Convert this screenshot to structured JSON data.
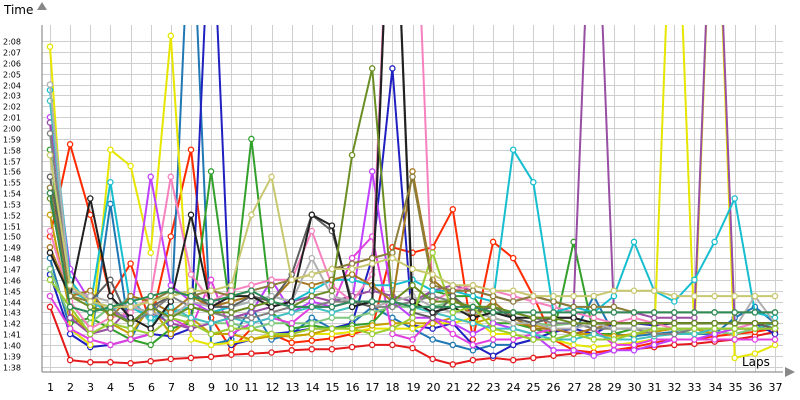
{
  "chart_data": {
    "type": "line",
    "ylabel": "Time",
    "xlabel": "Laps",
    "x_tick_labels": [
      "1",
      "2",
      "3",
      "4",
      "5",
      "6",
      "7",
      "8",
      "9",
      "10",
      "11",
      "12",
      "13",
      "14",
      "15",
      "16",
      "17",
      "18",
      "19",
      "20",
      "21",
      "22",
      "23",
      "24",
      "25",
      "26",
      "27",
      "28",
      "29",
      "30",
      "31",
      "32",
      "33",
      "34",
      "35",
      "36",
      "37"
    ],
    "y_tick_labels": [
      "1:38",
      "1:39",
      "1:40",
      "1:41",
      "1:42",
      "1:43",
      "1:44",
      "1:45",
      "1:46",
      "1:47",
      "1:48",
      "1:49",
      "1:50",
      "1:51",
      "1:52",
      "1:53",
      "1:54",
      "1:55",
      "1:56",
      "1:57",
      "1:58",
      "1:59",
      "2:00",
      "2:01",
      "2:02",
      "2:03",
      "2:04",
      "2:05",
      "2:06",
      "2:07",
      "2:08"
    ],
    "xlim": [
      1,
      37
    ],
    "ylim_seconds": [
      97.5,
      129.5
    ],
    "grid": true,
    "legend": "none",
    "series": [
      {
        "color": "#e41a1c",
        "values": [
          103.5,
          98.6,
          98.4,
          98.4,
          98.3,
          98.5,
          98.7,
          98.8,
          98.9,
          99.1,
          99.2,
          99.3,
          99.5,
          99.6,
          99.6,
          99.8,
          100.0,
          100.0,
          99.7,
          98.7,
          98.2,
          98.6,
          98.8,
          98.6,
          98.8,
          99.0,
          99.2,
          99.3,
          99.5,
          99.6,
          99.8,
          100.0,
          100.1,
          100.3,
          100.5,
          100.8,
          101.2
        ]
      },
      {
        "color": "#ff2a00",
        "values": [
          110.0,
          118.5,
          112.0,
          104.5,
          107.5,
          102.0,
          110.0,
          118.0,
          102.5,
          99.6,
          101.5,
          101.0,
          100.2,
          100.4,
          100.6,
          101.0,
          101.5,
          109.0,
          108.5,
          109.0,
          112.5,
          100.5,
          109.5,
          108.0,
          104.5,
          100.5,
          99.5,
          99.3,
          99.5,
          99.8,
          100.2,
          100.5,
          100.5,
          100.8,
          101.0,
          101.2,
          101.5
        ]
      },
      {
        "color": "#1f78b4",
        "values": [
          108.0,
          101.5,
          100.0,
          113.0,
          100.5,
          104.0,
          101.5,
          143.0,
          100.0,
          100.5,
          103.5,
          100.5,
          101.0,
          102.5,
          101.5,
          102.0,
          103.5,
          102.5,
          101.5,
          100.5,
          100.0,
          99.5,
          100.0,
          100.0,
          100.5,
          100.5,
          101.0,
          104.5,
          101.0,
          100.8,
          101.0,
          101.2,
          101.0,
          101.0,
          102.5,
          103.5,
          102.0
        ]
      },
      {
        "color": "#2020c0",
        "values": [
          106.5,
          101.0,
          99.8,
          100.0,
          100.5,
          101.0,
          100.8,
          101.5,
          143.0,
          100.0,
          100.5,
          101.0,
          101.2,
          101.5,
          101.5,
          102.0,
          108.0,
          125.5,
          101.8,
          101.5,
          102.0,
          100.0,
          99.0,
          100.0,
          100.5,
          101.2,
          101.5,
          101.0,
          102.0,
          102.0,
          101.8,
          102.0,
          102.0,
          102.0,
          102.0,
          102.0,
          101.0
        ]
      },
      {
        "color": "#33a02c",
        "values": [
          118.0,
          102.0,
          102.5,
          101.5,
          100.5,
          100.0,
          101.5,
          102.0,
          116.0,
          102.5,
          119.0,
          103.0,
          101.5,
          101.8,
          101.5,
          101.8,
          102.0,
          104.0,
          103.5,
          105.0,
          104.5,
          104.5,
          102.0,
          102.0,
          101.5,
          101.0,
          109.5,
          101.0,
          101.0,
          101.5,
          101.5,
          101.5,
          101.5,
          101.5,
          101.5,
          101.5,
          101.5
        ]
      },
      {
        "color": "#7fc97f",
        "values": [
          107.0,
          102.5,
          102.0,
          103.5,
          103.5,
          102.5,
          103.0,
          102.5,
          102.0,
          102.0,
          101.5,
          102.0,
          102.0,
          102.0,
          102.5,
          102.5,
          103.0,
          103.5,
          103.5,
          103.5,
          104.0,
          103.5,
          103.0,
          102.5,
          102.0,
          101.8,
          102.0,
          101.5,
          101.5,
          101.5,
          101.5,
          101.5,
          101.0,
          101.2,
          101.0,
          101.5,
          101.5
        ]
      },
      {
        "color": "#e6e600",
        "values": [
          127.5,
          101.5,
          100.0,
          118.0,
          116.5,
          108.5,
          128.5,
          100.5,
          100.0,
          100.2,
          100.5,
          101.0,
          100.8,
          101.0,
          101.0,
          101.2,
          101.5,
          101.5,
          101.5,
          102.0,
          102.0,
          102.5,
          101.0,
          101.0,
          100.5,
          100.5,
          100.0,
          99.8,
          100.0,
          100.2,
          100.5,
          150.0,
          101.0,
          150.0,
          98.8,
          99.2,
          100.0
        ]
      },
      {
        "color": "#c6a000",
        "values": [
          112.0,
          103.0,
          101.0,
          102.0,
          101.0,
          103.5,
          101.0,
          102.5,
          101.0,
          101.0,
          100.5,
          100.8,
          100.8,
          101.0,
          101.5,
          101.5,
          101.8,
          102.0,
          102.0,
          102.0,
          102.5,
          102.0,
          102.5,
          102.0,
          101.8,
          101.5,
          101.0,
          101.0,
          100.8,
          101.0,
          101.2,
          101.5,
          101.5,
          101.0,
          101.5,
          101.5,
          101.5
        ]
      },
      {
        "color": "#bf40ff",
        "values": [
          121.0,
          107.0,
          104.0,
          103.0,
          102.5,
          115.5,
          105.5,
          104.0,
          103.0,
          102.5,
          103.0,
          106.0,
          103.0,
          104.0,
          103.5,
          104.0,
          116.0,
          104.0,
          102.5,
          102.5,
          102.0,
          101.0,
          102.0,
          101.5,
          101.0,
          99.5,
          99.5,
          99.0,
          99.5,
          99.5,
          100.0,
          100.5,
          100.5,
          101.0,
          101.5,
          101.5,
          101.5
        ]
      },
      {
        "color": "#e040e0",
        "values": [
          104.5,
          101.5,
          100.5,
          100.0,
          100.5,
          101.0,
          102.5,
          101.5,
          106.0,
          101.0,
          102.0,
          102.5,
          102.0,
          103.5,
          103.5,
          108.0,
          110.0,
          101.0,
          100.5,
          102.5,
          101.0,
          100.0,
          100.5,
          100.5,
          101.0,
          101.5,
          101.0,
          101.5,
          100.0,
          100.0,
          100.5,
          100.5,
          100.5,
          100.5,
          100.5,
          100.5,
          100.5
        ]
      },
      {
        "color": "#984ea3",
        "values": [
          120.5,
          102.5,
          101.0,
          101.5,
          103.5,
          103.0,
          102.0,
          101.5,
          102.0,
          102.5,
          103.0,
          103.5,
          104.0,
          104.5,
          104.0,
          104.5,
          105.0,
          104.5,
          104.0,
          105.0,
          105.5,
          105.0,
          104.5,
          104.0,
          104.5,
          104.0,
          103.5,
          150.0,
          103.0,
          103.0,
          102.5,
          102.5,
          102.5,
          150.0,
          102.0,
          102.0,
          102.0
        ]
      },
      {
        "color": "#f781bf",
        "values": [
          110.5,
          104.0,
          101.5,
          102.5,
          103.0,
          104.5,
          115.5,
          106.5,
          104.0,
          105.0,
          105.5,
          106.0,
          106.0,
          110.5,
          105.5,
          104.0,
          106.5,
          150.0,
          150.0,
          104.0,
          105.0,
          105.5,
          105.0,
          104.5,
          104.0,
          103.5,
          103.0,
          102.5,
          102.0,
          102.5,
          102.0,
          101.5,
          101.5,
          101.5,
          101.5,
          102.0,
          101.5
        ]
      },
      {
        "color": "#17becf",
        "values": [
          123.5,
          106.0,
          103.5,
          115.0,
          103.5,
          102.5,
          103.0,
          103.5,
          103.0,
          103.5,
          104.0,
          104.5,
          104.0,
          105.0,
          106.0,
          106.0,
          105.5,
          105.5,
          106.0,
          105.0,
          105.0,
          104.5,
          104.0,
          118.0,
          115.0,
          103.0,
          103.5,
          103.0,
          104.5,
          109.5,
          105.0,
          104.0,
          106.0,
          109.5,
          113.5,
          103.0,
          102.5
        ]
      },
      {
        "color": "#40c0c0",
        "values": [
          122.5,
          105.0,
          104.0,
          103.0,
          104.5,
          102.0,
          103.5,
          102.5,
          102.0,
          102.5,
          102.0,
          102.5,
          103.0,
          103.5,
          103.0,
          103.5,
          104.0,
          104.0,
          103.5,
          103.0,
          102.5,
          102.0,
          101.5,
          101.5,
          101.0,
          100.5,
          100.5,
          101.0,
          100.5,
          100.5,
          100.8,
          101.0,
          101.0,
          101.5,
          101.5,
          101.5,
          102.0
        ]
      },
      {
        "color": "#a6761d",
        "values": [
          109.0,
          104.5,
          105.0,
          102.5,
          104.5,
          104.0,
          103.0,
          104.5,
          103.5,
          104.0,
          104.5,
          104.0,
          106.0,
          105.5,
          106.0,
          106.5,
          105.5,
          104.0,
          116.0,
          106.0,
          104.5,
          102.5,
          104.0,
          102.5,
          101.5,
          101.5,
          101.0,
          101.5,
          102.0,
          102.0,
          102.0,
          102.0,
          102.0,
          102.0,
          102.0,
          102.0,
          102.0
        ]
      },
      {
        "color": "#808080",
        "values": [
          119.5,
          105.5,
          104.0,
          103.5,
          102.0,
          103.0,
          104.5,
          103.5,
          103.0,
          102.5,
          102.5,
          103.0,
          103.5,
          103.5,
          104.0,
          104.0,
          103.5,
          103.5,
          104.0,
          104.5,
          104.0,
          103.5,
          103.5,
          103.0,
          102.5,
          102.0,
          102.0,
          101.5,
          101.5,
          101.5,
          101.0,
          101.0,
          101.5,
          101.5,
          101.5,
          101.5,
          101.5
        ]
      },
      {
        "color": "#b0b0b0",
        "values": [
          124.0,
          105.0,
          104.5,
          104.0,
          103.5,
          103.0,
          102.5,
          104.0,
          103.5,
          103.5,
          104.0,
          104.5,
          104.0,
          108.0,
          104.5,
          104.0,
          103.5,
          104.0,
          104.5,
          103.5,
          103.0,
          103.0,
          102.5,
          102.0,
          102.0,
          101.5,
          101.5,
          102.0,
          101.5,
          101.5,
          101.5,
          101.5,
          101.5,
          101.5,
          101.5,
          104.5,
          102.0
        ]
      },
      {
        "color": "#606060",
        "values": [
          115.5,
          105.5,
          104.0,
          106.0,
          102.0,
          103.5,
          104.5,
          105.0,
          103.5,
          103.5,
          104.5,
          104.0,
          106.5,
          112.0,
          110.5,
          104.0,
          103.5,
          150.0,
          103.0,
          102.5,
          104.5,
          103.0,
          103.5,
          102.5,
          102.0,
          102.5,
          102.5,
          102.0,
          102.0,
          102.0,
          102.0,
          102.0,
          102.0,
          102.0,
          102.0,
          102.0,
          101.5
        ]
      },
      {
        "color": "#202020",
        "values": [
          108.5,
          104.5,
          113.5,
          104.5,
          102.5,
          101.5,
          104.0,
          112.0,
          103.5,
          104.5,
          104.5,
          103.5,
          104.0,
          112.0,
          111.0,
          103.5,
          104.0,
          150.0,
          104.0,
          103.0,
          103.5,
          102.5,
          103.0,
          102.5,
          102.5,
          102.5,
          102.5,
          102.0,
          102.0,
          102.0,
          102.0,
          102.0,
          102.0,
          102.0,
          102.0,
          102.0,
          102.0
        ]
      },
      {
        "color": "#9acd32",
        "values": [
          106.0,
          103.5,
          101.0,
          102.0,
          101.5,
          101.0,
          102.5,
          102.0,
          101.0,
          101.5,
          101.5,
          101.0,
          101.0,
          101.5,
          101.5,
          101.5,
          101.0,
          101.5,
          102.5,
          108.5,
          103.0,
          103.5,
          101.5,
          101.0,
          100.5,
          100.5,
          101.0,
          100.5,
          100.5,
          101.0,
          101.5,
          101.5,
          101.5,
          101.5,
          101.5,
          101.5,
          101.5
        ]
      },
      {
        "color": "#6b8e23",
        "values": [
          113.5,
          104.5,
          103.5,
          103.0,
          102.0,
          103.5,
          102.5,
          103.5,
          103.0,
          103.0,
          103.5,
          104.0,
          103.5,
          104.5,
          105.0,
          117.5,
          125.5,
          104.0,
          105.5,
          104.0,
          104.0,
          103.5,
          103.5,
          103.0,
          102.5,
          102.5,
          102.0,
          102.0,
          102.0,
          102.0,
          102.0,
          102.0,
          102.0,
          102.0,
          102.0,
          102.0,
          102.0
        ]
      },
      {
        "color": "#8b7d3a",
        "values": [
          114.5,
          104.5,
          104.0,
          103.5,
          103.5,
          104.0,
          105.0,
          104.5,
          105.0,
          104.5,
          105.0,
          105.5,
          106.0,
          106.5,
          107.0,
          107.5,
          108.0,
          108.5,
          115.5,
          105.5,
          105.0,
          105.0,
          104.5,
          104.0,
          104.5,
          104.0,
          103.5,
          103.5,
          103.5,
          103.0,
          103.0,
          103.0,
          103.0,
          103.0,
          103.0,
          103.0,
          103.0
        ]
      },
      {
        "color": "#c8c870",
        "values": [
          117.5,
          105.5,
          104.0,
          103.5,
          103.5,
          104.0,
          104.5,
          105.0,
          105.0,
          105.5,
          112.0,
          115.5,
          106.0,
          106.5,
          107.0,
          107.0,
          107.5,
          108.0,
          107.0,
          106.5,
          105.5,
          105.5,
          105.0,
          105.0,
          104.5,
          104.5,
          104.5,
          104.5,
          105.0,
          105.0,
          105.0,
          104.5,
          104.5,
          104.5,
          104.5,
          104.5,
          104.5
        ]
      },
      {
        "color": "#2e8b57",
        "values": [
          114.0,
          103.5,
          103.0,
          103.5,
          104.0,
          104.5,
          105.0,
          104.5,
          104.0,
          104.5,
          105.0,
          104.0,
          103.5,
          103.5,
          103.5,
          104.0,
          104.0,
          104.0,
          103.5,
          103.5,
          103.5,
          103.5,
          103.0,
          103.0,
          103.0,
          103.0,
          103.0,
          103.0,
          103.0,
          103.0,
          103.0,
          103.0,
          103.0,
          103.0,
          103.0,
          103.0,
          103.0
        ]
      }
    ]
  }
}
